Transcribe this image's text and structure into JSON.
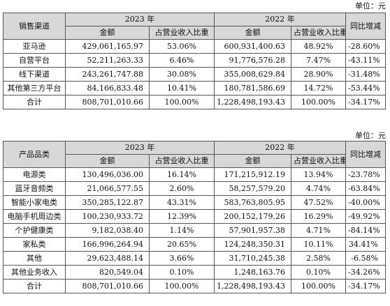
{
  "unit_label": "单位：元",
  "table1": {
    "first_col_header": "销售渠道",
    "year_a": "2023 年",
    "year_b": "2022 年",
    "amount_header": "金额",
    "ratio_header": "占营业收入比重",
    "yoy_header": "同比增减",
    "rows": [
      {
        "name": "亚马逊",
        "amt23": "429,061,165.97",
        "pct23": "53.06%",
        "amt22": "600,931,400.63",
        "pct22": "48.92%",
        "yoy": "-28.60%"
      },
      {
        "name": "自营平台",
        "amt23": "52,211,263.33",
        "pct23": "6.46%",
        "amt22": "91,776,576.28",
        "pct22": "7.47%",
        "yoy": "-43.11%"
      },
      {
        "name": "线下渠道",
        "amt23": "243,261,747.88",
        "pct23": "30.08%",
        "amt22": "355,008,629.84",
        "pct22": "28.90%",
        "yoy": "-31.48%"
      },
      {
        "name": "其他第三方平台",
        "amt23": "84,166,833.48",
        "pct23": "10.41%",
        "amt22": "180,781,586.69",
        "pct22": "14.72%",
        "yoy": "-53.44%"
      },
      {
        "name": "合计",
        "amt23": "808,701,010.66",
        "pct23": "100.00%",
        "amt22": "1,228,498,193.43",
        "pct22": "100.00%",
        "yoy": "-34.17%"
      }
    ]
  },
  "table2": {
    "first_col_header": "产品品类",
    "year_a": "2023 年",
    "year_b": "2022 年",
    "amount_header": "金额",
    "ratio_header": "占营业收入比重",
    "yoy_header": "同比增减",
    "rows": [
      {
        "name": "电源类",
        "amt23": "130,496,036.00",
        "pct23": "16.14%",
        "amt22": "171,215,912.19",
        "pct22": "13.94%",
        "yoy": "-23.78%"
      },
      {
        "name": "蓝牙音频类",
        "amt23": "21,066,577.55",
        "pct23": "2.60%",
        "amt22": "58,257,579.20",
        "pct22": "4.74%",
        "yoy": "-63.84%"
      },
      {
        "name": "智能小家电类",
        "amt23": "350,285,122.87",
        "pct23": "43.31%",
        "amt22": "583,763,805.95",
        "pct22": "47.52%",
        "yoy": "-40.00%"
      },
      {
        "name": "电脑手机周边类",
        "amt23": "100,230,933.72",
        "pct23": "12.39%",
        "amt22": "200,152,179.26",
        "pct22": "16.29%",
        "yoy": "-49.92%"
      },
      {
        "name": "个护健康类",
        "amt23": "9,182,038.40",
        "pct23": "1.14%",
        "amt22": "57,901,957.38",
        "pct22": "4.71%",
        "yoy": "-84.14%"
      },
      {
        "name": "家私类",
        "amt23": "166,996,264.94",
        "pct23": "20.65%",
        "amt22": "124,248,350.31",
        "pct22": "10.11%",
        "yoy": "34.41%"
      },
      {
        "name": "其他",
        "amt23": "29,623,488.14",
        "pct23": "3.66%",
        "amt22": "31,710,245.38",
        "pct22": "2.58%",
        "yoy": "-6.58%"
      },
      {
        "name": "其他业务收入",
        "amt23": "820,549.04",
        "pct23": "0.10%",
        "amt22": "1,248,163.76",
        "pct22": "0.10%",
        "yoy": "-34.26%"
      },
      {
        "name": "合计",
        "amt23": "808,701,010.66",
        "pct23": "100.00%",
        "amt22": "1,228,498,193.43",
        "pct22": "100.00%",
        "yoy": "-34.17%"
      }
    ]
  }
}
